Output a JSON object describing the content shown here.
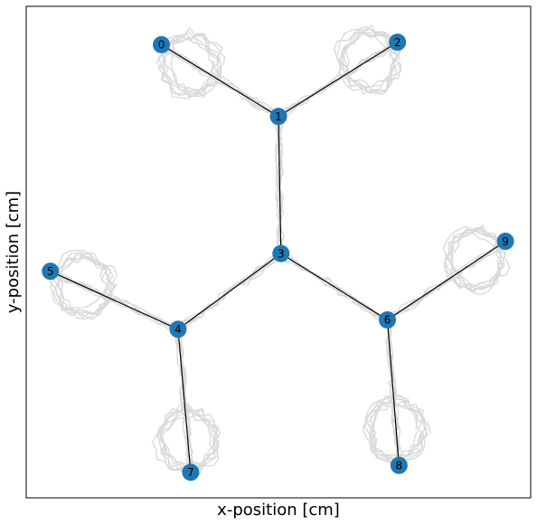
{
  "chart_data": {
    "type": "scatter",
    "title": "",
    "xlabel": "x-position [cm]",
    "ylabel": "y-position [cm]",
    "xlim": [
      0,
      100
    ],
    "ylim": [
      0,
      100
    ],
    "grid": false,
    "axis_ticks": false,
    "node_color": "#1f77b4",
    "edge_color": "#000000",
    "trajectory_color": "#d9d9d9",
    "nodes": [
      {
        "id": "0",
        "x": 26.8,
        "y": 92.2
      },
      {
        "id": "1",
        "x": 50.0,
        "y": 77.6
      },
      {
        "id": "2",
        "x": 73.6,
        "y": 92.7
      },
      {
        "id": "3",
        "x": 50.5,
        "y": 49.7
      },
      {
        "id": "4",
        "x": 30.1,
        "y": 34.3
      },
      {
        "id": "5",
        "x": 4.8,
        "y": 46.1
      },
      {
        "id": "6",
        "x": 71.6,
        "y": 36.2
      },
      {
        "id": "7",
        "x": 32.6,
        "y": 5.2
      },
      {
        "id": "8",
        "x": 73.9,
        "y": 6.6
      },
      {
        "id": "9",
        "x": 95.0,
        "y": 52.2
      }
    ],
    "edges": [
      [
        "0",
        "1"
      ],
      [
        "1",
        "2"
      ],
      [
        "1",
        "3"
      ],
      [
        "3",
        "4"
      ],
      [
        "4",
        "5"
      ],
      [
        "4",
        "7"
      ],
      [
        "3",
        "6"
      ],
      [
        "6",
        "9"
      ],
      [
        "6",
        "8"
      ]
    ]
  }
}
